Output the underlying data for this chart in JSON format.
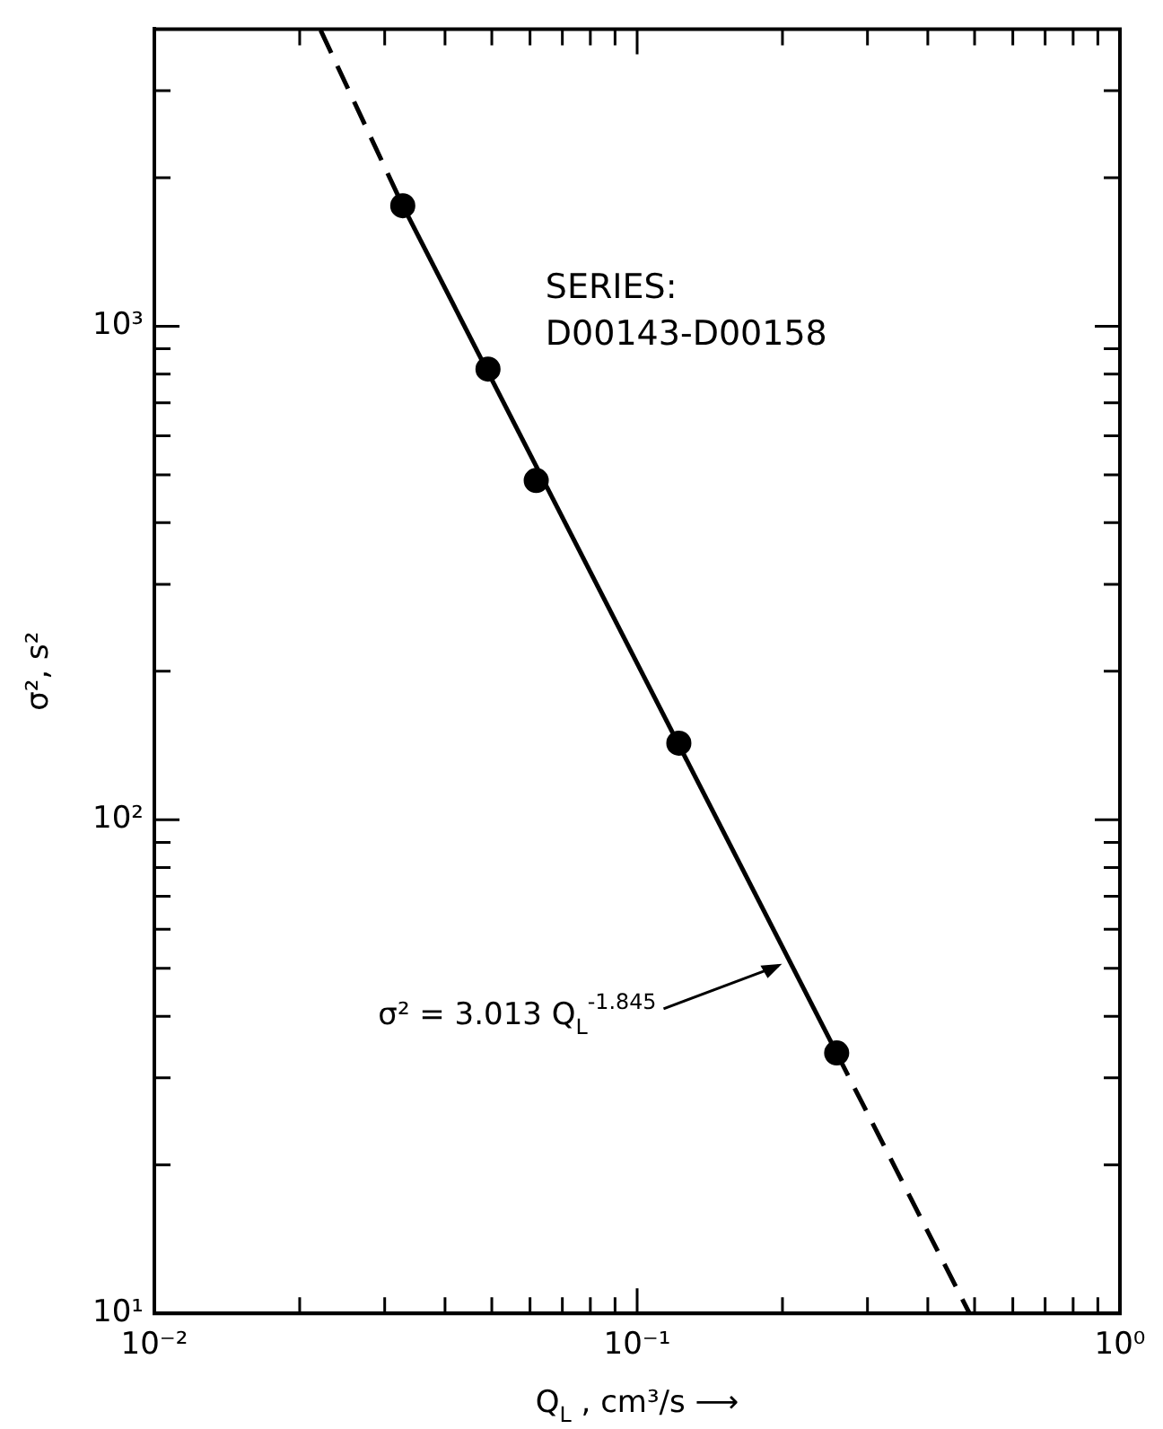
{
  "chart_data": {
    "type": "scatter",
    "xlabel": "Q$_{L}$ , cm³/s ⟶",
    "ylabel": "σ², s²",
    "log": "xy",
    "grid": false,
    "legend": false,
    "marker": "circle",
    "xlim": [
      0.01,
      1
    ],
    "ylim": [
      10,
      4000
    ],
    "xticks": [
      {
        "value": 0.01,
        "label": "10⁻²"
      },
      {
        "value": 0.02,
        "label": null
      },
      {
        "value": 0.03,
        "label": null
      },
      {
        "value": 0.04,
        "label": null
      },
      {
        "value": 0.05,
        "label": null
      },
      {
        "value": 0.06,
        "label": null
      },
      {
        "value": 0.07,
        "label": null
      },
      {
        "value": 0.08,
        "label": null
      },
      {
        "value": 0.09,
        "label": null
      },
      {
        "value": 0.1,
        "label": "10⁻¹"
      },
      {
        "value": 0.2,
        "label": null
      },
      {
        "value": 0.3,
        "label": null
      },
      {
        "value": 0.4,
        "label": null
      },
      {
        "value": 0.5,
        "label": null
      },
      {
        "value": 0.6,
        "label": null
      },
      {
        "value": 0.7,
        "label": null
      },
      {
        "value": 0.8,
        "label": null
      },
      {
        "value": 0.9,
        "label": null
      },
      {
        "value": 1,
        "label": "10⁰"
      }
    ],
    "yticks": [
      {
        "value": 10,
        "label": "10¹"
      },
      {
        "value": 20,
        "label": null
      },
      {
        "value": 30,
        "label": null
      },
      {
        "value": 40,
        "label": null
      },
      {
        "value": 50,
        "label": null
      },
      {
        "value": 60,
        "label": null
      },
      {
        "value": 70,
        "label": null
      },
      {
        "value": 80,
        "label": null
      },
      {
        "value": 90,
        "label": null
      },
      {
        "value": 100,
        "label": "10²"
      },
      {
        "value": 200,
        "label": null
      },
      {
        "value": 300,
        "label": null
      },
      {
        "value": 400,
        "label": null
      },
      {
        "value": 500,
        "label": null
      },
      {
        "value": 600,
        "label": null
      },
      {
        "value": 700,
        "label": null
      },
      {
        "value": 800,
        "label": null
      },
      {
        "value": 900,
        "label": null
      },
      {
        "value": 1000,
        "label": "10³"
      },
      {
        "value": 2000,
        "label": null
      },
      {
        "value": 3000,
        "label": null
      }
    ],
    "series": [
      {
        "color": "#000000",
        "x": [
          0.0327,
          0.0491,
          0.0618,
          0.122,
          0.259
        ],
        "values": [
          1755,
          819,
          487,
          143,
          33.7
        ]
      },
      {
        "type": "line",
        "color": "#000000",
        "line_style": "dashed",
        "marker": "none",
        "x": [
          0.0221,
          0.0327
        ],
        "values": [
          3980,
          1755
        ]
      },
      {
        "type": "line",
        "color": "#000000",
        "line_style": "solid",
        "marker": "none",
        "x": [
          0.0327,
          0.259
        ],
        "values": [
          1755,
          33.7
        ]
      },
      {
        "type": "line",
        "color": "#000000",
        "line_style": "dashed",
        "marker": "none",
        "x": [
          0.259,
          0.488
        ],
        "values": [
          33.7,
          10
        ]
      }
    ],
    "annotations": [
      "SERIES:",
      "D00143-D00158",
      {
        "text": "σ² = 3.013 Q$_{L}$$^{-1.845}$",
        "x": 0.203,
        "y": 51.5
      }
    ]
  }
}
